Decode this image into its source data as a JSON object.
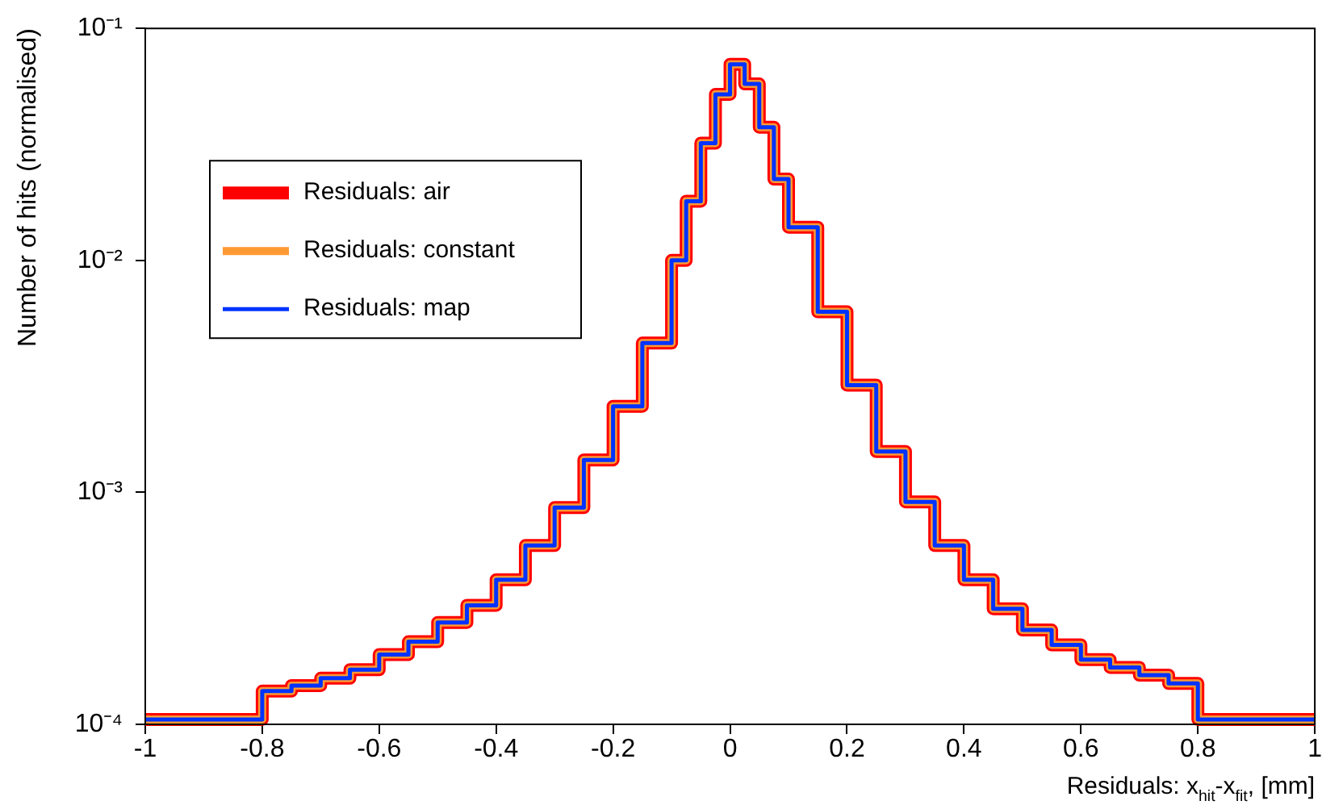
{
  "chart_data": {
    "type": "step",
    "xlabel": "Residuals: x$_{hit}$-x$_{fit}$, [mm]",
    "ylabel": "Number of hits (normalised)",
    "x": [
      -1,
      -0.8,
      -0.75,
      -0.7,
      -0.65,
      -0.6,
      -0.55,
      -0.5,
      -0.45,
      -0.4,
      -0.35,
      -0.3,
      -0.25,
      -0.2,
      -0.15,
      -0.1,
      -0.075,
      -0.05,
      -0.025,
      0,
      0.025,
      0.05,
      0.075,
      0.1,
      0.15,
      0.2,
      0.25,
      0.3,
      0.35,
      0.4,
      0.45,
      0.5,
      0.55,
      0.6,
      0.65,
      0.7,
      0.75,
      0.8,
      1
    ],
    "series": [
      {
        "name": "Residuals: air",
        "color": "#ff0000",
        "values": [
          0.000105,
          0.000139,
          0.000147,
          0.000158,
          0.000172,
          0.0002,
          0.000227,
          0.000275,
          0.000326,
          0.00042,
          0.00059,
          0.00086,
          0.00138,
          0.00235,
          0.0044,
          0.01,
          0.018,
          0.032,
          0.052,
          0.07,
          0.0576,
          0.0375,
          0.0224,
          0.0139,
          0.006,
          0.0029,
          0.0015,
          0.00091,
          0.00059,
          0.00042,
          0.000315,
          0.000255,
          0.00022,
          0.00019,
          0.000176,
          0.000163,
          0.00015,
          0.000105,
          0.000105
        ]
      },
      {
        "name": "Residuals: constant",
        "color": "#ff9933",
        "values": [
          0.000105,
          0.000139,
          0.000147,
          0.000158,
          0.000172,
          0.0002,
          0.000227,
          0.000275,
          0.000326,
          0.00042,
          0.00059,
          0.00086,
          0.00138,
          0.00235,
          0.0044,
          0.01,
          0.018,
          0.032,
          0.052,
          0.07,
          0.0576,
          0.0375,
          0.0224,
          0.0139,
          0.006,
          0.0029,
          0.0015,
          0.00091,
          0.00059,
          0.00042,
          0.000315,
          0.000255,
          0.00022,
          0.00019,
          0.000176,
          0.000163,
          0.00015,
          0.000105,
          0.000105
        ]
      },
      {
        "name": "Residuals: map",
        "color": "#0033ff",
        "values": [
          0.000105,
          0.000139,
          0.000147,
          0.000158,
          0.000172,
          0.0002,
          0.000227,
          0.000275,
          0.000326,
          0.00042,
          0.00059,
          0.00086,
          0.00138,
          0.00235,
          0.0044,
          0.01,
          0.018,
          0.032,
          0.052,
          0.07,
          0.0576,
          0.0375,
          0.0224,
          0.0139,
          0.006,
          0.0029,
          0.0015,
          0.00091,
          0.00059,
          0.00042,
          0.000315,
          0.000255,
          0.00022,
          0.00019,
          0.000176,
          0.000163,
          0.00015,
          0.000105,
          0.000105
        ]
      }
    ],
    "xlim": [
      -1,
      1
    ],
    "xticks": [
      -1,
      -0.8,
      -0.6,
      -0.4,
      -0.2,
      0,
      0.2,
      0.4,
      0.6,
      0.8,
      1
    ],
    "ylim": [
      0.0001,
      0.1
    ],
    "yticks": [
      {
        "value": 0.0001,
        "label": "10⁻⁴"
      },
      {
        "value": 0.001,
        "label": "10⁻³"
      },
      {
        "value": 0.01,
        "label": "10⁻²"
      },
      {
        "value": 0.1,
        "label": "10⁻¹"
      }
    ],
    "log": "y",
    "grid": false,
    "legend": "top left",
    "line_style": "solid",
    "marker": "none"
  }
}
